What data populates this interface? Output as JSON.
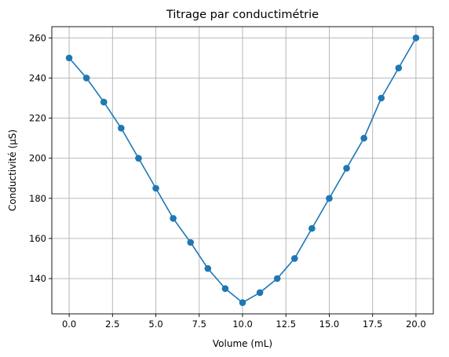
{
  "chart_data": {
    "type": "line",
    "title": "Titrage par conductimétrie",
    "xlabel": "Volume (mL)",
    "ylabel": "Conductivité (µS)",
    "xlim": [
      -1.0,
      21.0
    ],
    "ylim": [
      122.4,
      265.6
    ],
    "xticks": [
      0.0,
      2.5,
      5.0,
      7.5,
      10.0,
      12.5,
      15.0,
      17.5,
      20.0
    ],
    "xtick_labels": [
      "0.0",
      "2.5",
      "5.0",
      "7.5",
      "10.0",
      "12.5",
      "15.0",
      "17.5",
      "20.0"
    ],
    "yticks": [
      140,
      160,
      180,
      200,
      220,
      240,
      260
    ],
    "ytick_labels": [
      "140",
      "160",
      "180",
      "200",
      "220",
      "240",
      "260"
    ],
    "grid": true,
    "series": [
      {
        "color": "#1f77b4",
        "marker": "circle",
        "x": [
          0,
          1,
          2,
          3,
          4,
          5,
          6,
          7,
          8,
          9,
          10,
          11,
          12,
          13,
          14,
          15,
          16,
          17,
          18,
          19,
          20
        ],
        "y": [
          250,
          240,
          228,
          215,
          200,
          185,
          170,
          158,
          145,
          135,
          128,
          133,
          140,
          150,
          165,
          180,
          195,
          210,
          230,
          245,
          260
        ]
      }
    ]
  }
}
